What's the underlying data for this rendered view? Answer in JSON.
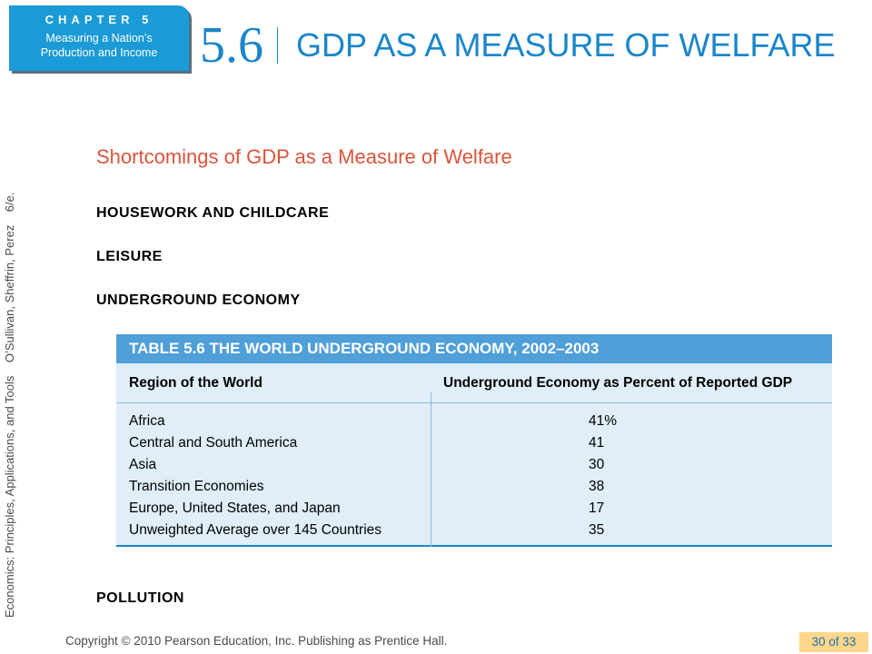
{
  "chapter": {
    "label": "CHAPTER 5",
    "subtitle_line1": "Measuring a Nation’s",
    "subtitle_line2": "Production and Income"
  },
  "header": {
    "section_number": "5.6",
    "title": "GDP AS A MEASURE OF WELFARE"
  },
  "side_text": "Economics: Principles, Applications, and Tools    O’Sullivan, Sheffrin, Perez    6/e.",
  "content": {
    "subtitle": "Shortcomings of GDP as a Measure of Welfare",
    "topics": [
      "HOUSEWORK AND CHILDCARE",
      "LEISURE",
      "UNDERGROUND ECONOMY",
      "POLLUTION"
    ]
  },
  "table": {
    "caption": "TABLE 5.6 THE WORLD UNDERGROUND ECONOMY, 2002–2003",
    "headers": [
      "Region of the World",
      "Underground Economy as Percent of Reported GDP"
    ],
    "rows": [
      {
        "region": "Africa",
        "percent": "41%"
      },
      {
        "region": "Central and South America",
        "percent": "41"
      },
      {
        "region": "Asia",
        "percent": "30"
      },
      {
        "region": "Transition Economies",
        "percent": "38"
      },
      {
        "region": "Europe, United States, and Japan",
        "percent": "17"
      },
      {
        "region": "Unweighted Average over 145 Countries",
        "percent": "35"
      }
    ]
  },
  "footer": {
    "copyright": "Copyright © 2010 Pearson Education, Inc. Publishing as Prentice Hall.",
    "page_number": "30 of 33"
  }
}
